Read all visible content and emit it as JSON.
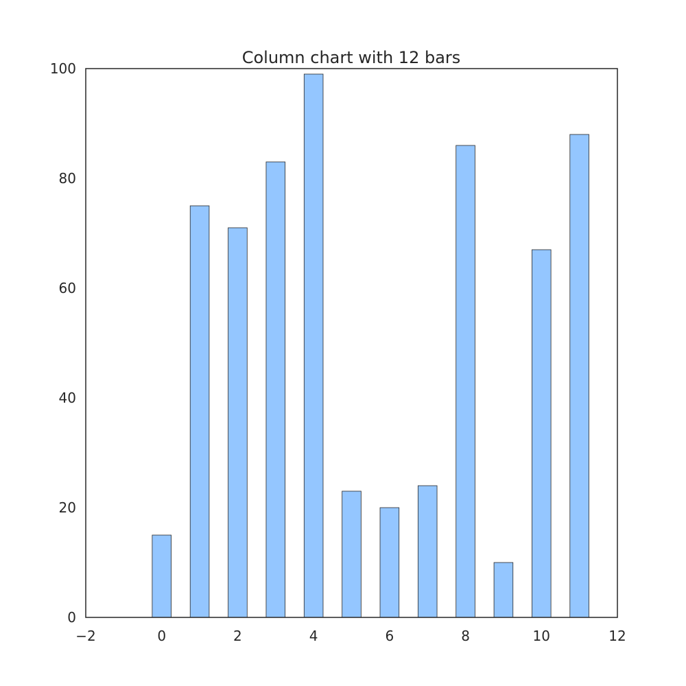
{
  "chart_data": {
    "type": "bar",
    "title": "Column chart with 12 bars",
    "xlabel": "",
    "ylabel": "",
    "x": [
      0,
      1,
      2,
      3,
      4,
      5,
      6,
      7,
      8,
      9,
      10,
      11
    ],
    "values": [
      15,
      75,
      71,
      83,
      99,
      23,
      20,
      24,
      86,
      10,
      67,
      88
    ],
    "xlim": [
      -2,
      12
    ],
    "ylim": [
      0,
      100
    ],
    "xticks": [
      -2,
      0,
      2,
      4,
      6,
      8,
      10,
      12
    ],
    "xtick_labels": [
      "−2",
      "0",
      "2",
      "4",
      "6",
      "8",
      "10",
      "12"
    ],
    "yticks": [
      0,
      20,
      40,
      60,
      80,
      100
    ],
    "ytick_labels": [
      "0",
      "20",
      "40",
      "60",
      "80",
      "100"
    ],
    "bar_width": 0.5,
    "bar_color": "#94c6ff",
    "edge_color": "#262626",
    "grid": false,
    "legend": "none"
  }
}
